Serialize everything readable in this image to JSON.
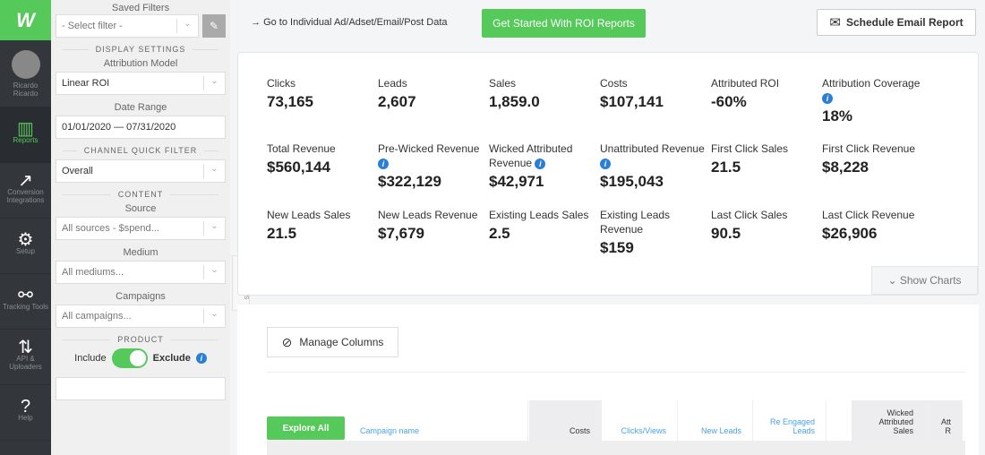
{
  "nav": {
    "logo": "W",
    "user": "Ricardo Ricardo",
    "items": [
      {
        "label": "Reports",
        "icon": "reports-icon"
      },
      {
        "label": "Conversion Integrations",
        "icon": "arrow-up-right-icon"
      },
      {
        "label": "Setup",
        "icon": "gear-sliders-icon"
      },
      {
        "label": "Tracking Tools",
        "icon": "nodes-icon"
      },
      {
        "label": "API & Uploaders",
        "icon": "up-down-arrows-icon"
      },
      {
        "label": "Help",
        "icon": "question-icon"
      }
    ]
  },
  "filters": {
    "saved_filters": "Saved Filters",
    "select_filter": "- Select filter -",
    "display_settings": "DISPLAY SETTINGS",
    "attribution_model_label": "Attribution Model",
    "attribution_model": "Linear ROI",
    "date_range_label": "Date Range",
    "date_range": "01/01/2020 — 07/31/2020",
    "channel_quick_filter": "CHANNEL QUICK FILTER",
    "channel": "Overall",
    "content": "CONTENT",
    "source_label": "Source",
    "source": "All sources - $spend...",
    "medium_label": "Medium",
    "medium": "All mediums...",
    "campaigns_label": "Campaigns",
    "campaigns": "All campaigns...",
    "product": "PRODUCT",
    "include": "Include",
    "exclude": "Exclude",
    "tab": "FILTERS"
  },
  "top": {
    "goto": "Go to Individual Ad/Adset/Email/Post Data",
    "roi": "Get Started With ROI Reports",
    "schedule": "Schedule Email Report"
  },
  "stats": [
    {
      "name": "Clicks",
      "value": "73,165"
    },
    {
      "name": "Leads",
      "value": "2,607"
    },
    {
      "name": "Sales",
      "value": "1,859.0"
    },
    {
      "name": "Costs",
      "value": "$107,141"
    },
    {
      "name": "Attributed ROI",
      "value": "-60%"
    },
    {
      "name": "Attribution Coverage",
      "value": "18%",
      "info": true
    },
    {
      "name": "Total Revenue",
      "value": "$560,144"
    },
    {
      "name": "Pre-Wicked Revenue",
      "value": "$322,129",
      "info": true
    },
    {
      "name": "Wicked Attributed Revenue",
      "value": "$42,971",
      "info": true
    },
    {
      "name": "Unattributed Revenue",
      "value": "$195,043",
      "info": true
    },
    {
      "name": "First Click Sales",
      "value": "21.5"
    },
    {
      "name": "First Click Revenue",
      "value": "$8,228"
    },
    {
      "name": "New Leads Sales",
      "value": "21.5"
    },
    {
      "name": "New Leads Revenue",
      "value": "$7,679"
    },
    {
      "name": "Existing Leads Sales",
      "value": "2.5"
    },
    {
      "name": "Existing Leads Revenue",
      "value": "$159"
    },
    {
      "name": "Last Click Sales",
      "value": "90.5"
    },
    {
      "name": "Last Click Revenue",
      "value": "$26,906"
    }
  ],
  "show_charts": "Show Charts",
  "table": {
    "manage_columns": "Manage Columns",
    "explore_all": "Explore All",
    "columns": [
      "Campaign name",
      "Costs",
      "Clicks/Views",
      "New Leads",
      "Re Engaged Leads",
      "Wicked Attributed Sales",
      "Att R"
    ]
  },
  "colors": {
    "brand": "#55c95a",
    "nav": "#33373c",
    "link": "#4aa3e8",
    "info": "#2a7fd4"
  }
}
